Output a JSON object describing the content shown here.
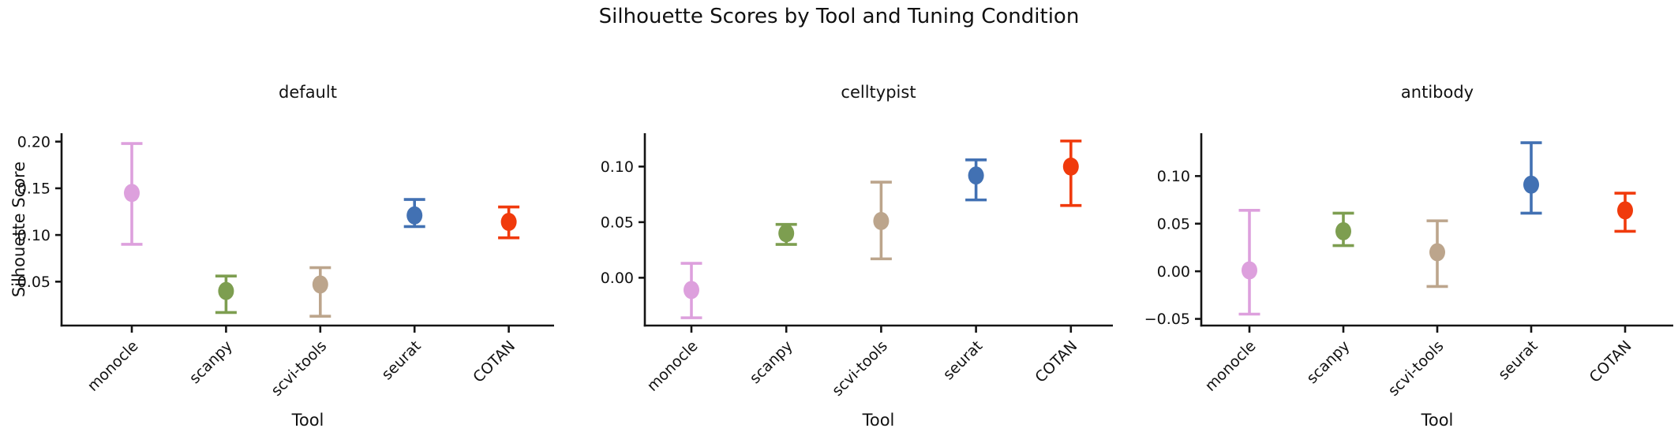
{
  "figure": {
    "background": "#ffffff",
    "text_color": "#111111",
    "axis_color": "#141414"
  },
  "chart_data": {
    "type": "scatter",
    "subtype": "point-estimates-with-error-bars",
    "title": "Silhouette Scores by Tool and Tuning Condition",
    "xlabel": "Tool",
    "ylabel": "Silhouette Score",
    "grid": false,
    "legend": "none",
    "categories": [
      "monocle",
      "scanpy",
      "scvi-tools",
      "seurat",
      "COTAN"
    ],
    "palette": {
      "monocle": "#DDA0DD",
      "scanpy": "#7D9E50",
      "scvi-tools": "#BCA58C",
      "seurat": "#4271B3",
      "COTAN": "#F03A0C"
    },
    "panels": [
      {
        "title": "default",
        "ylim": [
          0.003,
          0.209
        ],
        "yticks": [
          0.05,
          0.1,
          0.15,
          0.2
        ],
        "points": [
          {
            "tool": "monocle",
            "mean": 0.145,
            "ci_low": 0.09,
            "ci_high": 0.198
          },
          {
            "tool": "scanpy",
            "mean": 0.04,
            "ci_low": 0.017,
            "ci_high": 0.056
          },
          {
            "tool": "scvi-tools",
            "mean": 0.047,
            "ci_low": 0.013,
            "ci_high": 0.065
          },
          {
            "tool": "seurat",
            "mean": 0.121,
            "ci_low": 0.109,
            "ci_high": 0.138
          },
          {
            "tool": "COTAN",
            "mean": 0.114,
            "ci_low": 0.097,
            "ci_high": 0.13
          }
        ]
      },
      {
        "title": "celltypist",
        "ylim": [
          -0.043,
          0.13
        ],
        "yticks": [
          0.0,
          0.05,
          0.1
        ],
        "points": [
          {
            "tool": "monocle",
            "mean": -0.011,
            "ci_low": -0.036,
            "ci_high": 0.013
          },
          {
            "tool": "scanpy",
            "mean": 0.04,
            "ci_low": 0.03,
            "ci_high": 0.048
          },
          {
            "tool": "scvi-tools",
            "mean": 0.051,
            "ci_low": 0.017,
            "ci_high": 0.086
          },
          {
            "tool": "seurat",
            "mean": 0.092,
            "ci_low": 0.07,
            "ci_high": 0.106
          },
          {
            "tool": "COTAN",
            "mean": 0.1,
            "ci_low": 0.065,
            "ci_high": 0.123
          }
        ]
      },
      {
        "title": "antibody",
        "ylim": [
          -0.057,
          0.145
        ],
        "yticks": [
          -0.05,
          0.0,
          0.05,
          0.1
        ],
        "points": [
          {
            "tool": "monocle",
            "mean": 0.001,
            "ci_low": -0.045,
            "ci_high": 0.064
          },
          {
            "tool": "scanpy",
            "mean": 0.042,
            "ci_low": 0.027,
            "ci_high": 0.061
          },
          {
            "tool": "scvi-tools",
            "mean": 0.02,
            "ci_low": -0.016,
            "ci_high": 0.053
          },
          {
            "tool": "seurat",
            "mean": 0.091,
            "ci_low": 0.061,
            "ci_high": 0.135
          },
          {
            "tool": "COTAN",
            "mean": 0.064,
            "ci_low": 0.042,
            "ci_high": 0.082
          }
        ]
      }
    ]
  }
}
